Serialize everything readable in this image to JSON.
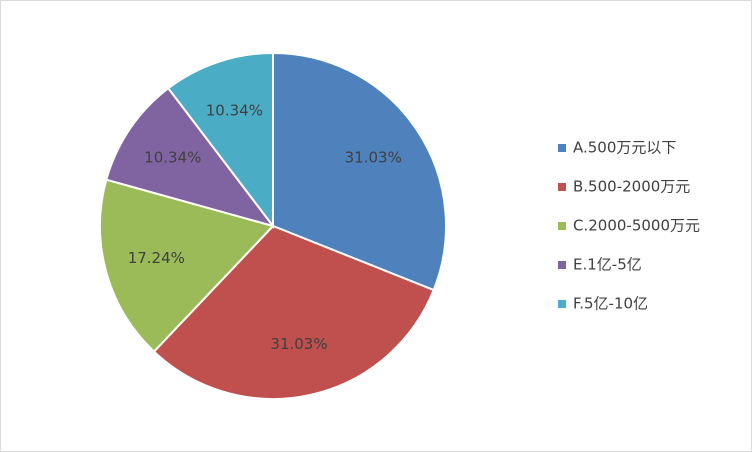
{
  "chart_data": {
    "type": "pie",
    "categories": [
      "A.500万元以下",
      "B.500-2000万元",
      "C.2000-5000万元",
      "E.1亿-5亿",
      "F.5亿-10亿"
    ],
    "values": [
      31.03,
      31.03,
      17.24,
      10.34,
      10.34
    ],
    "value_labels": [
      "31.03%",
      "31.03%",
      "17.24%",
      "10.34%",
      "10.34%"
    ],
    "colors": [
      "#4f81bd",
      "#c0504d",
      "#9bbb59",
      "#8064a2",
      "#4bacc6"
    ],
    "legend": "right"
  }
}
